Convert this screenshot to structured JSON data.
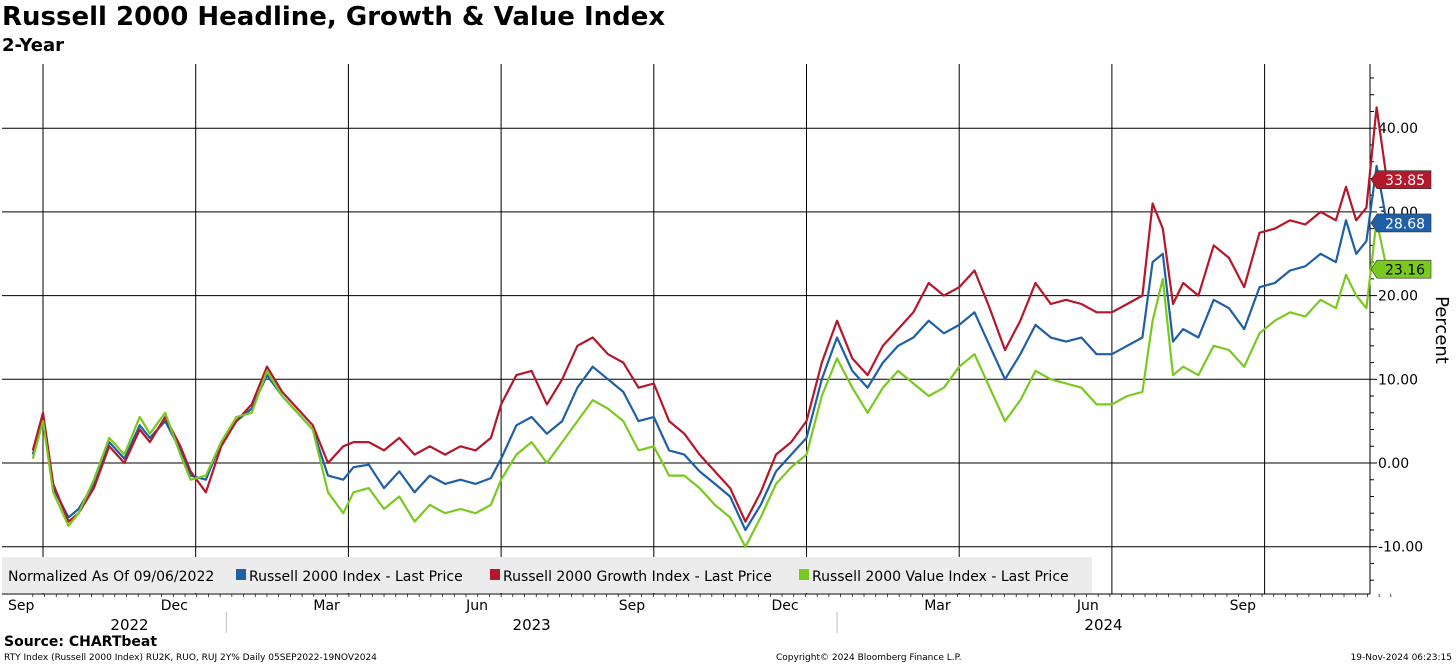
{
  "header": {
    "title": "Russell 2000 Headline, Growth & Value Index",
    "subtitle": "2-Year"
  },
  "footer": {
    "source": "Source: CHARTbeat",
    "left": "RTY Index (Russell 2000 Index) RU2K, RUO, RUJ 2Y%  Daily 05SEP2022-19NOV2024",
    "center": "Copyright© 2024 Bloomberg Finance L.P.",
    "right": "19-Nov-2024 06:23:15"
  },
  "chart_data": {
    "type": "line",
    "title": "Russell 2000 Headline, Growth & Value Index",
    "ylabel": "Percent",
    "ylim": [
      -15,
      48
    ],
    "yticks": [
      -10,
      0,
      10,
      20,
      30,
      40
    ],
    "ytick_labels": [
      "-10.00",
      "0.00",
      "10.00",
      "20.00",
      "30.00",
      "40.00"
    ],
    "grid": true,
    "x_month_ticks": [
      {
        "label": "Sep",
        "t": 0
      },
      {
        "label": "Dec",
        "t": 3
      },
      {
        "label": "Mar",
        "t": 6
      },
      {
        "label": "Jun",
        "t": 9
      },
      {
        "label": "Sep",
        "t": 12
      },
      {
        "label": "Dec",
        "t": 15
      },
      {
        "label": "Mar",
        "t": 18
      },
      {
        "label": "Jun",
        "t": 21
      },
      {
        "label": "Sep",
        "t": 24
      }
    ],
    "x_year_labels": [
      {
        "label": "2022",
        "t_start": -0.2,
        "t_end": 3.6
      },
      {
        "label": "2023",
        "t_start": 3.6,
        "t_end": 15.6
      },
      {
        "label": "2024",
        "t_start": 15.6,
        "t_end": 26.7
      }
    ],
    "x_range": [
      -0.2,
      26.7
    ],
    "legend": {
      "prefix": "Normalized As Of 09/06/2022",
      "position": "bottom-left"
    },
    "series": [
      {
        "name": "Russell 2000 Index - Last Price",
        "color": "#1f5fa6",
        "last_value": "28.68",
        "t": [
          -0.2,
          0.0,
          0.2,
          0.5,
          0.7,
          1.0,
          1.3,
          1.6,
          1.9,
          2.1,
          2.4,
          2.7,
          2.9,
          3.2,
          3.5,
          3.8,
          4.1,
          4.4,
          4.7,
          5.0,
          5.3,
          5.6,
          5.9,
          6.1,
          6.4,
          6.7,
          7.0,
          7.3,
          7.6,
          7.9,
          8.2,
          8.5,
          8.8,
          9.0,
          9.3,
          9.6,
          9.9,
          10.2,
          10.5,
          10.8,
          11.1,
          11.4,
          11.7,
          12.0,
          12.3,
          12.6,
          12.9,
          13.2,
          13.5,
          13.8,
          14.1,
          14.4,
          14.7,
          15.0,
          15.3,
          15.6,
          15.9,
          16.2,
          16.5,
          16.8,
          17.1,
          17.4,
          17.7,
          18.0,
          18.3,
          18.6,
          18.9,
          19.2,
          19.5,
          19.8,
          20.1,
          20.4,
          20.7,
          21.0,
          21.3,
          21.6,
          21.8,
          22.0,
          22.2,
          22.4,
          22.7,
          23.0,
          23.3,
          23.6,
          23.9,
          24.2,
          24.5,
          24.8,
          25.1,
          25.4,
          25.6,
          25.8,
          26.0,
          26.2,
          26.4
        ],
        "values": [
          1.0,
          5.5,
          -3.0,
          -6.5,
          -5.5,
          -2.5,
          2.5,
          0.5,
          4.5,
          3.0,
          5.0,
          1.5,
          -1.5,
          -2.0,
          2.5,
          5.0,
          6.5,
          10.5,
          8.0,
          6.0,
          4.0,
          -1.5,
          -2.0,
          -0.5,
          -0.2,
          -3.0,
          -1.0,
          -3.5,
          -1.5,
          -2.5,
          -2.0,
          -2.5,
          -1.8,
          0.5,
          4.5,
          5.5,
          3.5,
          5.0,
          9.0,
          11.5,
          10.0,
          8.5,
          5.0,
          5.5,
          1.5,
          1.0,
          -1.0,
          -2.5,
          -4.0,
          -8.0,
          -5.0,
          -1.0,
          1.0,
          3.0,
          10.0,
          15.0,
          11.0,
          9.0,
          12.0,
          14.0,
          15.0,
          17.0,
          15.5,
          16.5,
          18.0,
          14.0,
          10.0,
          13.0,
          16.5,
          15.0,
          14.5,
          15.0,
          13.0,
          13.0,
          14.0,
          15.0,
          24.0,
          25.0,
          14.5,
          16.0,
          15.0,
          19.5,
          18.5,
          16.0,
          21.0,
          21.5,
          23.0,
          23.5,
          25.0,
          24.0,
          29.0,
          25.0,
          26.5,
          35.5,
          28.68
        ]
      },
      {
        "name": "Russell 2000 Growth Index - Last Price",
        "color": "#b5172b",
        "last_value": "33.85",
        "t": [
          -0.2,
          0.0,
          0.2,
          0.5,
          0.7,
          1.0,
          1.3,
          1.6,
          1.9,
          2.1,
          2.4,
          2.7,
          2.9,
          3.2,
          3.5,
          3.8,
          4.1,
          4.4,
          4.7,
          5.0,
          5.3,
          5.6,
          5.9,
          6.1,
          6.4,
          6.7,
          7.0,
          7.3,
          7.6,
          7.9,
          8.2,
          8.5,
          8.8,
          9.0,
          9.3,
          9.6,
          9.9,
          10.2,
          10.5,
          10.8,
          11.1,
          11.4,
          11.7,
          12.0,
          12.3,
          12.6,
          12.9,
          13.2,
          13.5,
          13.8,
          14.1,
          14.4,
          14.7,
          15.0,
          15.3,
          15.6,
          15.9,
          16.2,
          16.5,
          16.8,
          17.1,
          17.4,
          17.7,
          18.0,
          18.3,
          18.6,
          18.9,
          19.2,
          19.5,
          19.8,
          20.1,
          20.4,
          20.7,
          21.0,
          21.3,
          21.6,
          21.8,
          22.0,
          22.2,
          22.4,
          22.7,
          23.0,
          23.3,
          23.6,
          23.9,
          24.2,
          24.5,
          24.8,
          25.1,
          25.4,
          25.6,
          25.8,
          26.0,
          26.2,
          26.4
        ],
        "values": [
          1.5,
          6.0,
          -2.5,
          -7.0,
          -6.0,
          -3.0,
          2.0,
          0.0,
          4.0,
          2.5,
          5.5,
          2.0,
          -1.0,
          -3.5,
          2.0,
          5.0,
          7.0,
          11.5,
          8.5,
          6.5,
          4.5,
          0.0,
          2.0,
          2.5,
          2.5,
          1.5,
          3.0,
          1.0,
          2.0,
          1.0,
          2.0,
          1.5,
          3.0,
          7.0,
          10.5,
          11.0,
          7.0,
          10.0,
          14.0,
          15.0,
          13.0,
          12.0,
          9.0,
          9.5,
          5.0,
          3.5,
          1.0,
          -1.0,
          -3.0,
          -7.0,
          -3.5,
          1.0,
          2.5,
          5.0,
          12.0,
          17.0,
          12.5,
          10.5,
          14.0,
          16.0,
          18.0,
          21.5,
          20.0,
          21.0,
          23.0,
          18.5,
          13.5,
          17.0,
          21.5,
          19.0,
          19.5,
          19.0,
          18.0,
          18.0,
          19.0,
          20.0,
          31.0,
          28.0,
          19.0,
          21.5,
          20.0,
          26.0,
          24.5,
          21.0,
          27.5,
          28.0,
          29.0,
          28.5,
          30.0,
          29.0,
          33.0,
          29.0,
          30.5,
          42.5,
          33.85
        ]
      },
      {
        "name": "Russell 2000 Value Index - Last Price",
        "color": "#7ac91f",
        "last_value": "23.16",
        "t": [
          -0.2,
          0.0,
          0.2,
          0.5,
          0.7,
          1.0,
          1.3,
          1.6,
          1.9,
          2.1,
          2.4,
          2.7,
          2.9,
          3.2,
          3.5,
          3.8,
          4.1,
          4.4,
          4.7,
          5.0,
          5.3,
          5.6,
          5.9,
          6.1,
          6.4,
          6.7,
          7.0,
          7.3,
          7.6,
          7.9,
          8.2,
          8.5,
          8.8,
          9.0,
          9.3,
          9.6,
          9.9,
          10.2,
          10.5,
          10.8,
          11.1,
          11.4,
          11.7,
          12.0,
          12.3,
          12.6,
          12.9,
          13.2,
          13.5,
          13.8,
          14.1,
          14.4,
          14.7,
          15.0,
          15.3,
          15.6,
          15.9,
          16.2,
          16.5,
          16.8,
          17.1,
          17.4,
          17.7,
          18.0,
          18.3,
          18.6,
          18.9,
          19.2,
          19.5,
          19.8,
          20.1,
          20.4,
          20.7,
          21.0,
          21.3,
          21.6,
          21.8,
          22.0,
          22.2,
          22.4,
          22.7,
          23.0,
          23.3,
          23.6,
          23.9,
          24.2,
          24.5,
          24.8,
          25.1,
          25.4,
          25.6,
          25.8,
          26.0,
          26.2,
          26.4
        ],
        "values": [
          0.5,
          5.0,
          -3.5,
          -7.5,
          -6.0,
          -2.0,
          3.0,
          1.0,
          5.5,
          3.5,
          6.0,
          1.0,
          -2.0,
          -1.5,
          2.5,
          5.5,
          6.0,
          11.0,
          8.0,
          6.0,
          4.0,
          -3.5,
          -6.0,
          -3.5,
          -3.0,
          -5.5,
          -4.0,
          -7.0,
          -5.0,
          -6.0,
          -5.5,
          -6.0,
          -5.0,
          -2.0,
          1.0,
          2.5,
          0.0,
          2.5,
          5.0,
          7.5,
          6.5,
          5.0,
          1.5,
          2.0,
          -1.5,
          -1.5,
          -3.0,
          -5.0,
          -6.5,
          -10.0,
          -6.5,
          -2.5,
          -0.5,
          1.0,
          8.0,
          12.5,
          9.0,
          6.0,
          9.0,
          11.0,
          9.5,
          8.0,
          9.0,
          11.5,
          13.0,
          9.0,
          5.0,
          7.5,
          11.0,
          10.0,
          9.5,
          9.0,
          7.0,
          7.0,
          8.0,
          8.5,
          17.0,
          22.0,
          10.5,
          11.5,
          10.5,
          14.0,
          13.5,
          11.5,
          15.5,
          17.0,
          18.0,
          17.5,
          19.5,
          18.5,
          22.5,
          20.0,
          18.5,
          29.0,
          23.16
        ]
      }
    ]
  }
}
